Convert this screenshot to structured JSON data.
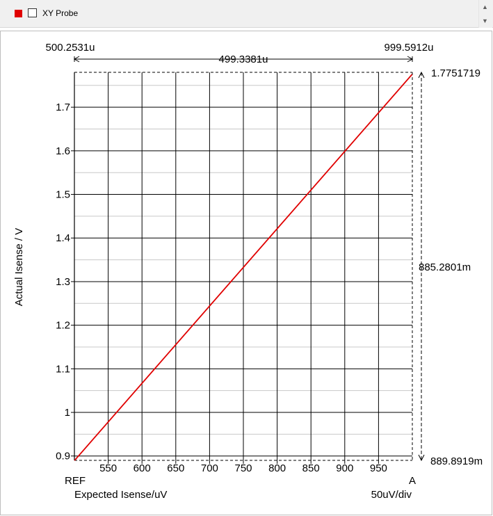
{
  "toolbar": {
    "probe_label": "XY Probe",
    "swatch_color": "#e00000",
    "up_icon": "chevron-up-icon",
    "down_icon": "chevron-down-icon"
  },
  "cursors": {
    "x_start": "500.2531u",
    "x_end": "999.5912u",
    "x_delta": "499.3381u",
    "y_top": "1.7751719",
    "y_delta": "885.2801m",
    "y_bottom": "889.8919m"
  },
  "markers": {
    "ref": "REF",
    "a": "A"
  },
  "scale_label": "50uV/div",
  "chart_data": {
    "type": "line",
    "xlabel": "Expected Isense/uV",
    "ylabel": "Actual Isense / V",
    "xlim": [
      500,
      1000
    ],
    "ylim": [
      0.89,
      1.78
    ],
    "x_ticks": [
      "550",
      "600",
      "650",
      "700",
      "750",
      "800",
      "850",
      "900",
      "950"
    ],
    "y_ticks": [
      "0.9",
      "1",
      "1.1",
      "1.2",
      "1.3",
      "1.4",
      "1.5",
      "1.6",
      "1.7"
    ],
    "grid": true,
    "series": [
      {
        "color": "#e00000",
        "x": [
          500.2531,
          999.5912
        ],
        "y": [
          0.8898919,
          1.7751719
        ]
      }
    ]
  }
}
